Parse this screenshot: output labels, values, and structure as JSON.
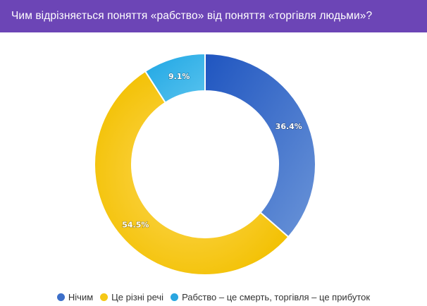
{
  "header": {
    "title": "Чим відрізняється поняття «рабство» від поняття «торгівля людьми»?",
    "background": "#6c45b6"
  },
  "chart_data": {
    "type": "pie",
    "donut": true,
    "title": "Чим відрізняється поняття «рабство» від поняття «торгівля людьми»?",
    "slices": [
      {
        "name": "Нічим",
        "value": 36.4,
        "label": "36.4%",
        "color": "#3d6fc9"
      },
      {
        "name": "Це різні речі",
        "value": 54.5,
        "label": "54.5%",
        "color": "#f5c816"
      },
      {
        "name": "Рабство – це смерть, торгівля – це прибуток",
        "value": 9.1,
        "label": "9.1%",
        "color": "#2aa6e0"
      }
    ],
    "legend_position": "bottom"
  }
}
